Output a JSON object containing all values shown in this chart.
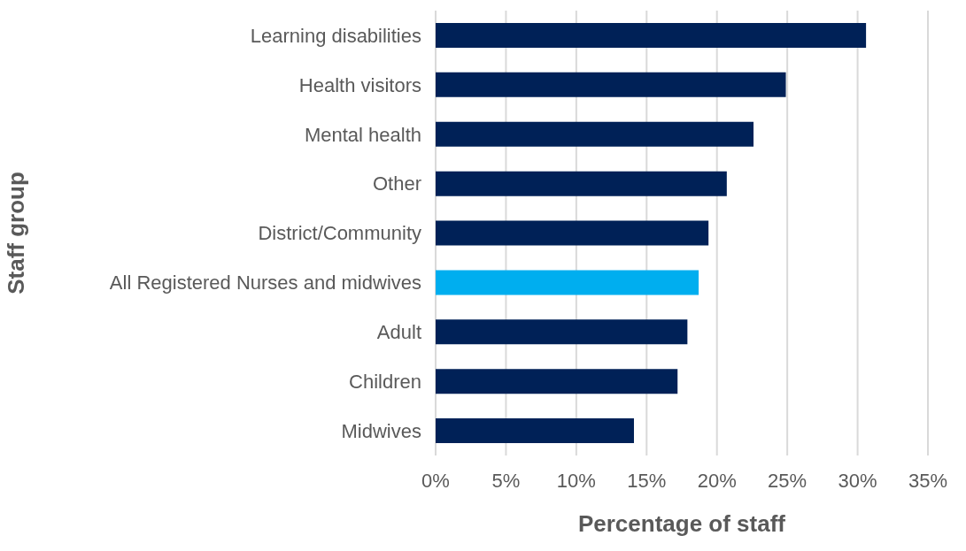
{
  "chart_data": {
    "type": "bar",
    "orientation": "horizontal",
    "xlabel": "Percentage of staff",
    "ylabel": "Staff group",
    "categories": [
      "Learning disabilities",
      "Health visitors",
      "Mental health",
      "Other",
      "District/Community",
      "All Registered Nurses and midwives",
      "Adult",
      "Children",
      "Midwives"
    ],
    "values": [
      30.6,
      24.9,
      22.6,
      20.7,
      19.4,
      18.7,
      17.9,
      17.2,
      14.1
    ],
    "colors": [
      "#002157",
      "#002157",
      "#002157",
      "#002157",
      "#002157",
      "#00aeef",
      "#002157",
      "#002157",
      "#002157"
    ],
    "xlim": [
      0,
      35
    ],
    "xticks": [
      {
        "value": 0,
        "label": "0%"
      },
      {
        "value": 5,
        "label": "5%"
      },
      {
        "value": 10,
        "label": "10%"
      },
      {
        "value": 15,
        "label": "15%"
      },
      {
        "value": 20,
        "label": "20%"
      },
      {
        "value": 25,
        "label": "25%"
      },
      {
        "value": 30,
        "label": "30%"
      },
      {
        "value": 35,
        "label": "35%"
      }
    ],
    "grid": "x",
    "legend": false
  }
}
